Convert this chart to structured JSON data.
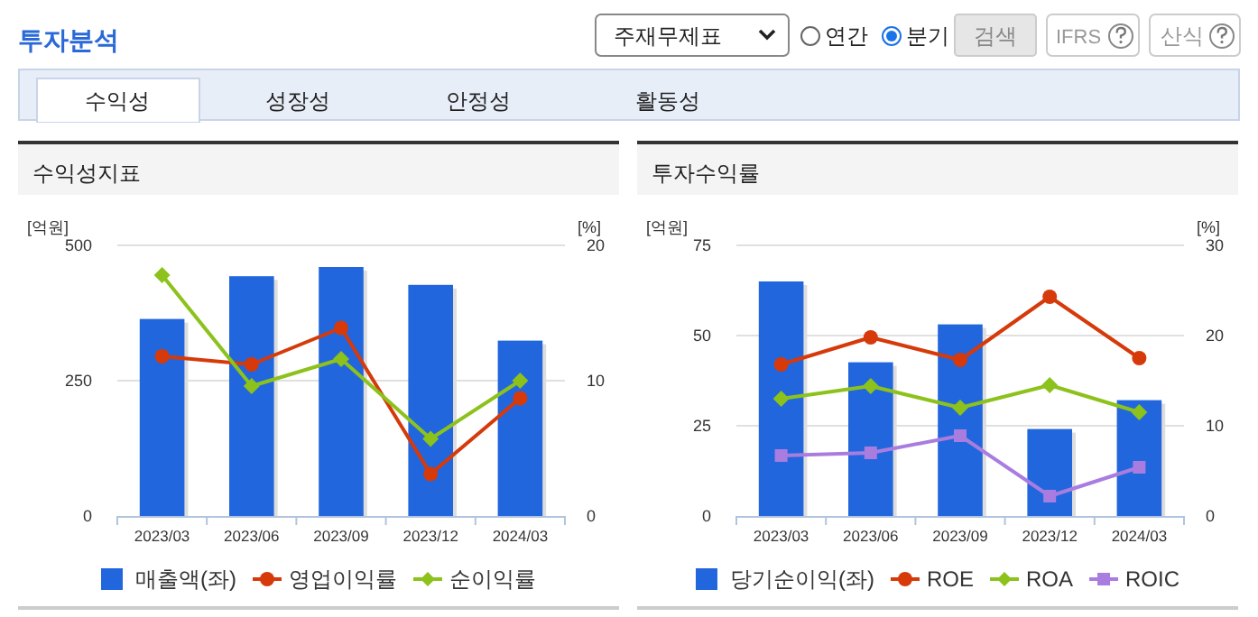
{
  "chart_data": [
    {
      "type": "other",
      "title": "투자분석",
      "annotations": [
        "주재무제표",
        "연간",
        "분기",
        "검색",
        "IFRS",
        "산식",
        "수익성",
        "성장성",
        "안정성",
        "활동성"
      ]
    },
    {
      "type": "bar",
      "title": "수익성지표",
      "ylabel": "[억원]",
      "y2label": "[%]",
      "categories": [
        "2023/03",
        "2023/06",
        "2023/09",
        "2023/12",
        "2024/03"
      ],
      "ylim": [
        0,
        500
      ],
      "yticks": [
        0,
        250,
        500
      ],
      "y2lim": [
        0,
        20
      ],
      "y2ticks": [
        0,
        10,
        20
      ],
      "grid": "y",
      "legend": "bottom",
      "series": [
        {
          "name": "매출액(좌)",
          "type": "bar",
          "color": "#2266dd",
          "values": [
            364,
            443,
            460,
            427,
            324
          ]
        },
        {
          "name": "영업이익률",
          "type": "line",
          "axis": "y2",
          "marker": "circle",
          "color": "#d63a0a",
          "values": [
            11.8,
            11.2,
            13.9,
            3.1,
            8.7
          ]
        },
        {
          "name": "순이익률",
          "type": "line",
          "axis": "y2",
          "marker": "diamond",
          "color": "#8cc21b",
          "values": [
            17.8,
            9.6,
            11.6,
            5.7,
            10.0
          ]
        }
      ]
    },
    {
      "type": "bar",
      "title": "투자수익률",
      "ylabel": "[억원]",
      "y2label": "[%]",
      "categories": [
        "2023/03",
        "2023/06",
        "2023/09",
        "2023/12",
        "2024/03"
      ],
      "ylim": [
        0,
        75
      ],
      "yticks": [
        0,
        25,
        50,
        75
      ],
      "y2lim": [
        0,
        30
      ],
      "y2ticks": [
        0,
        10,
        20,
        30
      ],
      "grid": "y",
      "legend": "bottom",
      "series": [
        {
          "name": "당기순이익(좌)",
          "type": "bar",
          "color": "#2266dd",
          "values": [
            65.0,
            42.6,
            53.1,
            24.1,
            32.1
          ]
        },
        {
          "name": "ROE",
          "type": "line",
          "axis": "y2",
          "marker": "circle",
          "color": "#d63a0a",
          "values": [
            16.8,
            19.8,
            17.3,
            24.3,
            17.5
          ]
        },
        {
          "name": "ROA",
          "type": "line",
          "axis": "y2",
          "marker": "diamond",
          "color": "#8cc21b",
          "values": [
            13.0,
            14.4,
            12.0,
            14.5,
            11.5
          ]
        },
        {
          "name": "ROIC",
          "type": "line",
          "axis": "y2",
          "marker": "square",
          "color": "#a97de0",
          "values": [
            6.7,
            7.0,
            8.9,
            2.2,
            5.4
          ]
        }
      ]
    }
  ]
}
